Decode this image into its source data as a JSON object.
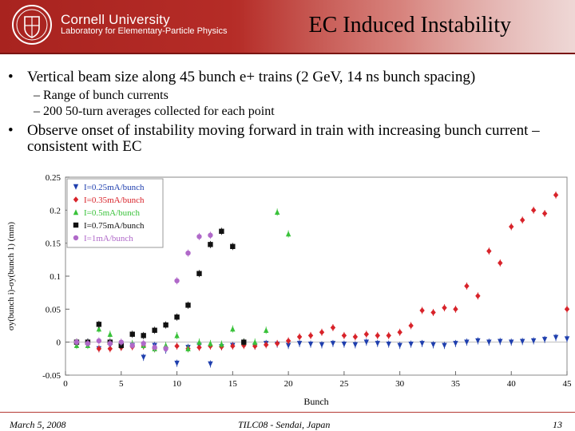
{
  "header": {
    "university": "Cornell University",
    "lab": "Laboratory for Elementary-Particle Physics",
    "title": "EC Induced Instability",
    "colors": {
      "brand": "#b31b1b"
    }
  },
  "bullets": [
    {
      "text": "Vertical beam size along 45 bunch e+ trains (2 GeV, 14 ns bunch spacing)",
      "subs": [
        "–  Range of bunch currents",
        "–  200 50-turn averages collected for each point"
      ]
    },
    {
      "text": "Observe onset of instability moving forward in train with increasing bunch current – consistent with EC"
    }
  ],
  "bullet_glyph": "•",
  "footer": {
    "date": "March 5, 2008",
    "venue": "TILC08 - Sendai, Japan",
    "page": "13"
  },
  "chart_data": {
    "type": "scatter",
    "xlabel": "Bunch",
    "ylabel": "σy(bunch i)-σy(bunch 1) (mm)",
    "xlim": [
      0,
      45
    ],
    "ylim": [
      -0.05,
      0.25
    ],
    "x_ticks": [
      "0",
      "5",
      "10",
      "15",
      "20",
      "25",
      "30",
      "35",
      "40",
      "45"
    ],
    "y_ticks": [
      "-0.05",
      "0",
      "0.05",
      "0.1",
      "0.15",
      "0.2",
      "0.25"
    ],
    "legend_position": "top-left",
    "series": [
      {
        "name": "I=0.25mA/bunch",
        "color": "#1f3fae",
        "marker": "triangle-down",
        "x": [
          1,
          2,
          3,
          4,
          5,
          6,
          7,
          8,
          9,
          10,
          11,
          12,
          13,
          14,
          15,
          16,
          17,
          18,
          19,
          20,
          21,
          22,
          23,
          24,
          25,
          26,
          27,
          28,
          29,
          30,
          31,
          32,
          33,
          34,
          35,
          36,
          37,
          38,
          39,
          40,
          41,
          42,
          43,
          44,
          45
        ],
        "y": [
          0,
          0,
          -0.01,
          -0.005,
          -0.007,
          -0.005,
          -0.023,
          -0.005,
          -0.012,
          -0.032,
          -0.008,
          -0.005,
          -0.033,
          -0.007,
          -0.005,
          -0.003,
          -0.006,
          -0.002,
          -0.003,
          -0.005,
          -0.002,
          -0.003,
          -0.004,
          -0.002,
          -0.003,
          -0.004,
          0,
          -0.002,
          -0.003,
          -0.005,
          -0.003,
          -0.002,
          -0.004,
          -0.005,
          -0.002,
          0,
          0.002,
          0,
          0.001,
          0,
          0.001,
          0.002,
          0.004,
          0.007,
          0.005
        ]
      },
      {
        "name": "I=0.35mA/bunch",
        "color": "#d8232a",
        "marker": "diamond",
        "x": [
          1,
          2,
          3,
          4,
          5,
          6,
          7,
          8,
          9,
          10,
          11,
          12,
          13,
          14,
          15,
          16,
          17,
          18,
          19,
          20,
          21,
          22,
          23,
          24,
          25,
          26,
          27,
          28,
          29,
          30,
          31,
          32,
          33,
          34,
          35,
          36,
          37,
          38,
          39,
          40,
          41,
          42,
          43,
          44,
          45
        ],
        "y": [
          0,
          -0.002,
          -0.01,
          -0.01,
          -0.008,
          -0.007,
          -0.006,
          -0.01,
          -0.008,
          -0.006,
          -0.01,
          -0.008,
          -0.006,
          -0.007,
          -0.006,
          -0.005,
          -0.006,
          -0.004,
          -0.002,
          0.002,
          0.008,
          0.01,
          0.015,
          0.022,
          0.01,
          0.008,
          0.012,
          0.01,
          0.01,
          0.015,
          0.025,
          0.048,
          0.045,
          0.052,
          0.05,
          0.085,
          0.07,
          0.138,
          0.12,
          0.175,
          0.185,
          0.2,
          0.195,
          0.223,
          0.05
        ]
      },
      {
        "name": "I=0.5mA/bunch",
        "color": "#39c23a",
        "marker": "triangle-up",
        "x": [
          1,
          2,
          3,
          4,
          5,
          6,
          7,
          8,
          9,
          10,
          11,
          12,
          13,
          14,
          15,
          16,
          17,
          18,
          19,
          20
        ],
        "y": [
          -0.005,
          -0.005,
          0.02,
          0.012,
          -0.005,
          -0.002,
          -0.005,
          -0.01,
          -0.005,
          0.01,
          -0.01,
          0.0,
          -0.002,
          -0.003,
          0.02,
          0.0,
          0.0,
          0.018,
          0.197,
          0.164
        ]
      },
      {
        "name": "I=0.75mA/bunch",
        "color": "#111111",
        "marker": "square",
        "x": [
          1,
          2,
          3,
          4,
          5,
          6,
          7,
          8,
          9,
          10,
          11,
          12,
          13,
          14,
          15,
          16
        ],
        "y": [
          0,
          0,
          0.027,
          0,
          -0.005,
          0.012,
          0.01,
          0.018,
          0.026,
          0.038,
          0.056,
          0.104,
          0.148,
          0.168,
          0.145,
          0.0
        ]
      },
      {
        "name": "I=1mA/bunch",
        "color": "#b069c9",
        "marker": "circle",
        "x": [
          1,
          2,
          3,
          4,
          5,
          6,
          7,
          8,
          9,
          10,
          11,
          12,
          13
        ],
        "y": [
          0,
          -0.002,
          0.002,
          -0.002,
          0.0,
          -0.005,
          -0.002,
          -0.008,
          -0.01,
          0.093,
          0.135,
          0.16,
          0.162
        ]
      }
    ]
  }
}
